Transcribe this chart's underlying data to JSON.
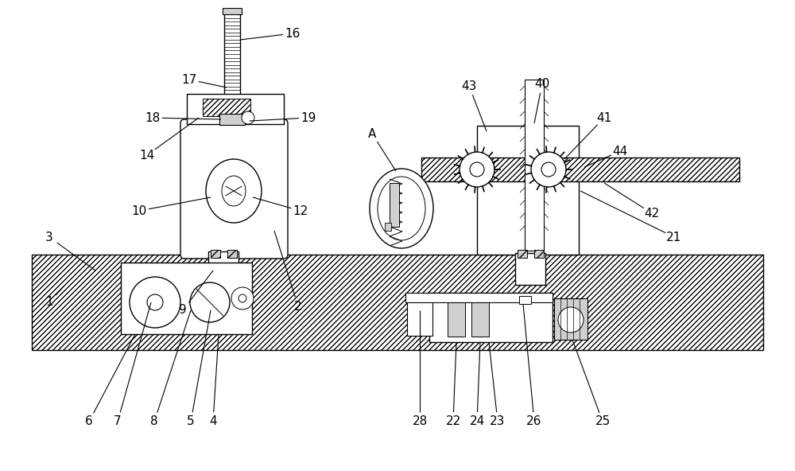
{
  "bg_color": "#ffffff",
  "line_color": "#000000",
  "fig_width": 10.0,
  "fig_height": 5.92,
  "dpi": 100
}
